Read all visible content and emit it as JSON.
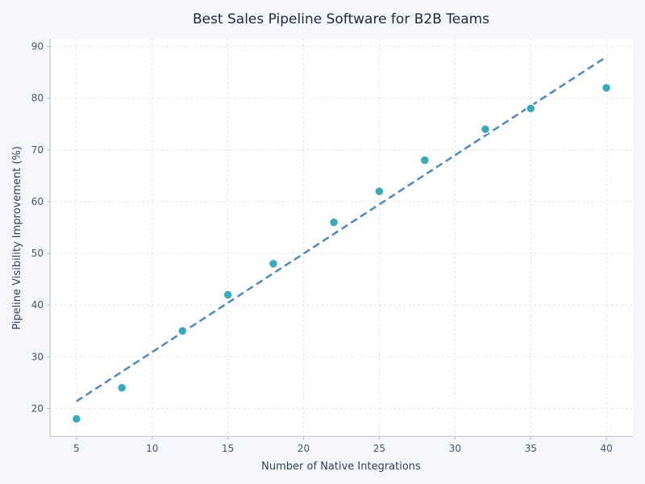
{
  "chart_data": {
    "type": "scatter",
    "title": "Best Sales Pipeline Software for B2B Teams",
    "xlabel": "Number of Native Integrations",
    "ylabel": "Pipeline Visibility Improvement (%)",
    "x": [
      5,
      8,
      12,
      15,
      18,
      22,
      25,
      28,
      32,
      35,
      40
    ],
    "y": [
      18,
      24,
      35,
      42,
      48,
      56,
      62,
      68,
      74,
      78,
      82
    ],
    "xlim": [
      3.25,
      41.75
    ],
    "ylim": [
      14.6,
      91.5
    ],
    "xticks": [
      5,
      10,
      15,
      20,
      25,
      30,
      35,
      40
    ],
    "yticks": [
      20,
      30,
      40,
      50,
      60,
      70,
      80,
      90
    ],
    "trendline": {
      "x": [
        5,
        40
      ],
      "y": [
        21.4,
        88.0
      ],
      "style": "dashed"
    },
    "grid": true,
    "colors": {
      "points": "#3aaab8",
      "trendline": "#4f88c0",
      "background": "#f5f7fb",
      "plot_area": "#ffffff"
    }
  }
}
